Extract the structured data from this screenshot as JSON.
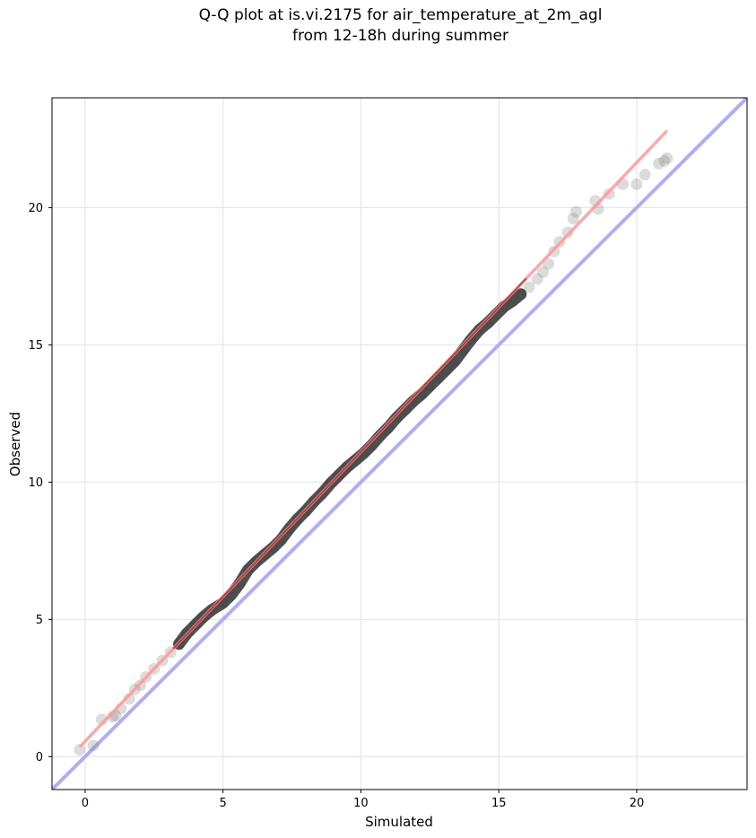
{
  "chart_data": {
    "type": "scatter",
    "title": "Q-Q plot at is.vi.2175 for air_temperature_at_2m_agl\nfrom 12-18h during summer",
    "xlabel": "Simulated",
    "ylabel": "Observed",
    "xlim": [
      -1.2,
      24.0
    ],
    "ylim": [
      -1.2,
      24.0
    ],
    "x_ticks": [
      0,
      5,
      10,
      15,
      20
    ],
    "y_ticks": [
      0,
      5,
      10,
      15,
      20
    ],
    "grid": true,
    "series": [
      {
        "kind": "quantile_points",
        "color": "#808080",
        "points": [
          [
            -0.2,
            0.25
          ],
          [
            0.3,
            0.4
          ],
          [
            0.6,
            1.35
          ],
          [
            1.0,
            1.45
          ],
          [
            1.1,
            1.5
          ],
          [
            1.3,
            1.75
          ],
          [
            1.6,
            2.1
          ],
          [
            1.8,
            2.45
          ],
          [
            2.0,
            2.6
          ],
          [
            2.2,
            2.9
          ],
          [
            2.5,
            3.2
          ],
          [
            2.8,
            3.5
          ],
          [
            3.1,
            3.8
          ],
          [
            3.4,
            4.1
          ],
          [
            3.7,
            4.5
          ],
          [
            4.0,
            4.8
          ],
          [
            4.3,
            5.1
          ],
          [
            4.6,
            5.35
          ],
          [
            5.0,
            5.6
          ],
          [
            5.3,
            5.9
          ],
          [
            5.6,
            6.3
          ],
          [
            5.9,
            6.8
          ],
          [
            6.2,
            7.1
          ],
          [
            6.5,
            7.35
          ],
          [
            6.8,
            7.6
          ],
          [
            7.1,
            7.9
          ],
          [
            7.4,
            8.3
          ],
          [
            7.7,
            8.65
          ],
          [
            8.0,
            8.95
          ],
          [
            8.3,
            9.3
          ],
          [
            8.6,
            9.6
          ],
          [
            8.9,
            9.95
          ],
          [
            9.2,
            10.25
          ],
          [
            9.5,
            10.55
          ],
          [
            9.8,
            10.8
          ],
          [
            10.1,
            11.05
          ],
          [
            10.4,
            11.35
          ],
          [
            10.7,
            11.7
          ],
          [
            11.0,
            12.0
          ],
          [
            11.3,
            12.35
          ],
          [
            11.6,
            12.65
          ],
          [
            11.9,
            12.95
          ],
          [
            12.2,
            13.2
          ],
          [
            12.5,
            13.5
          ],
          [
            12.8,
            13.8
          ],
          [
            13.1,
            14.1
          ],
          [
            13.4,
            14.4
          ],
          [
            13.7,
            14.8
          ],
          [
            14.0,
            15.2
          ],
          [
            14.3,
            15.55
          ],
          [
            14.6,
            15.8
          ],
          [
            14.9,
            16.1
          ],
          [
            15.2,
            16.4
          ],
          [
            15.5,
            16.6
          ],
          [
            15.8,
            16.85
          ],
          [
            16.1,
            17.1
          ],
          [
            16.4,
            17.4
          ],
          [
            16.6,
            17.65
          ],
          [
            16.8,
            17.95
          ],
          [
            17.0,
            18.4
          ],
          [
            17.2,
            18.75
          ],
          [
            17.5,
            19.1
          ],
          [
            17.7,
            19.6
          ],
          [
            17.8,
            19.85
          ],
          [
            18.5,
            20.25
          ],
          [
            18.6,
            19.95
          ],
          [
            19.0,
            20.5
          ],
          [
            19.5,
            20.85
          ],
          [
            20.0,
            20.85
          ],
          [
            20.3,
            21.2
          ],
          [
            20.8,
            21.6
          ],
          [
            21.0,
            21.7
          ],
          [
            21.1,
            21.8
          ]
        ]
      },
      {
        "kind": "fit_line",
        "color": "#ff9999",
        "x": [
          -0.2,
          21.1
        ],
        "y": [
          0.35,
          22.8
        ]
      },
      {
        "kind": "identity_line",
        "color": "#aaaaf5",
        "x": [
          -1.2,
          24.0
        ],
        "y": [
          -1.2,
          24.0
        ]
      }
    ]
  }
}
